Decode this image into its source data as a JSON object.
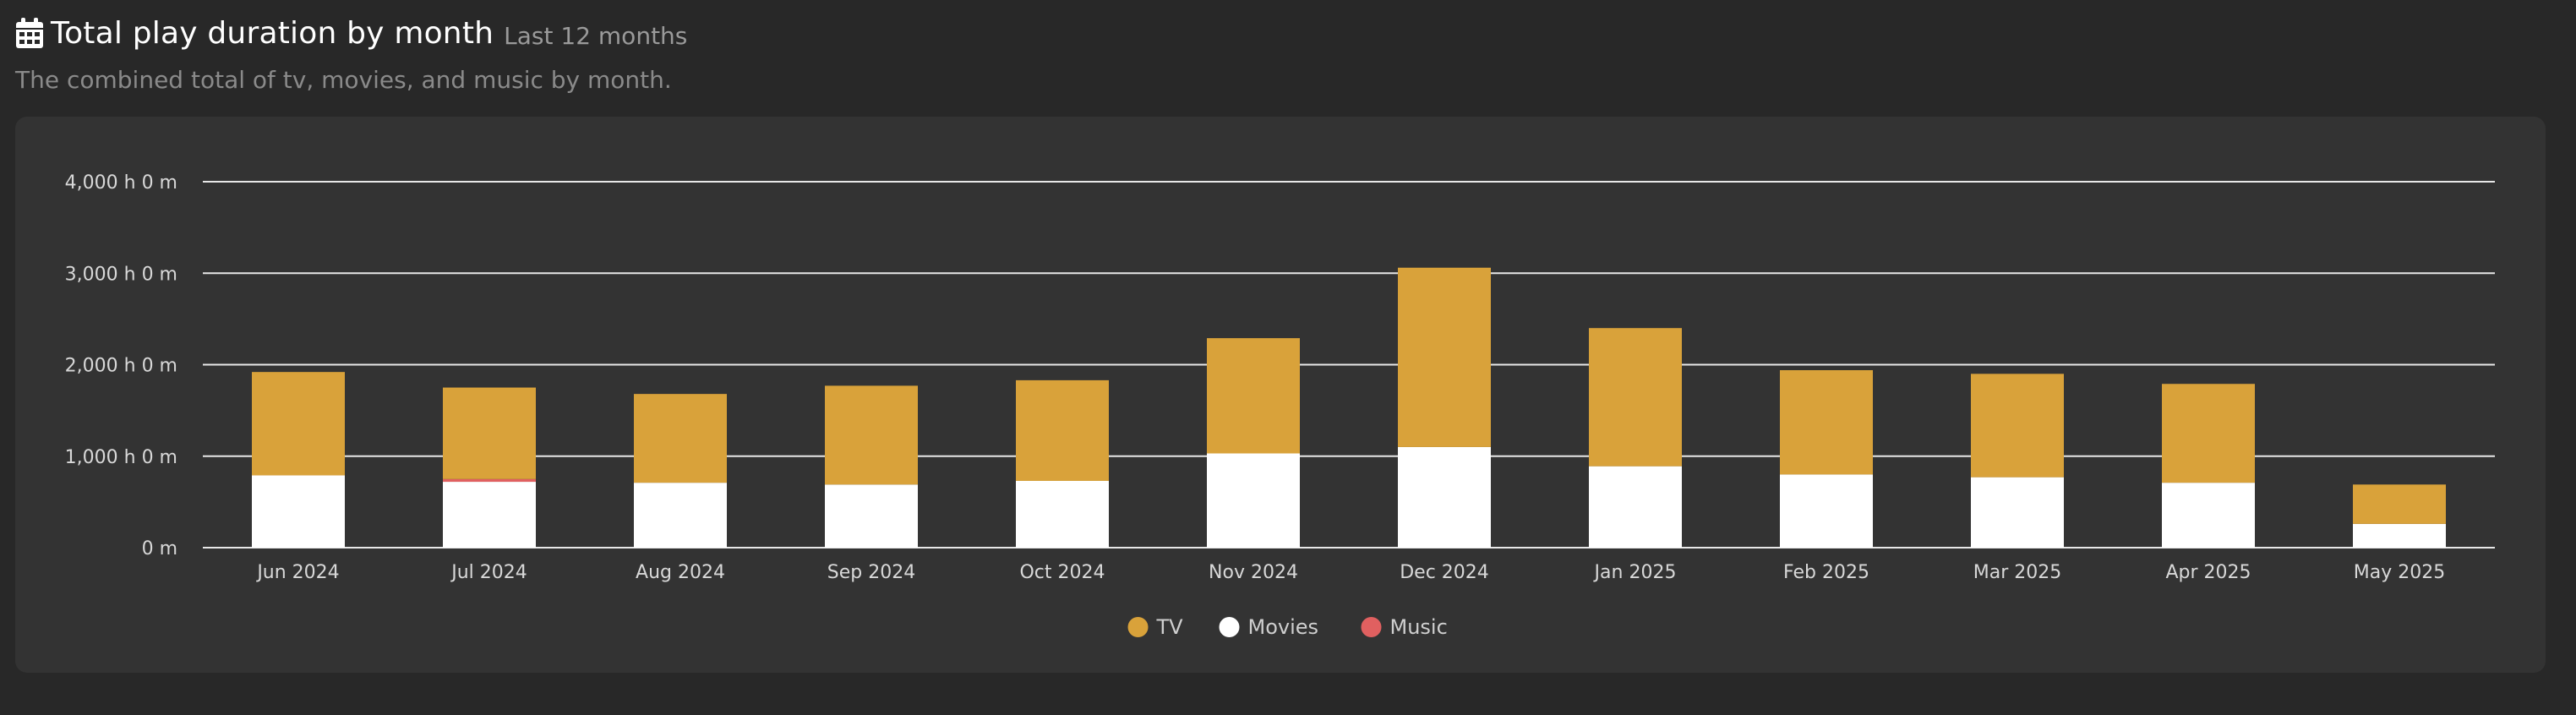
{
  "header": {
    "icon": "calendar-icon",
    "title": "Total play duration by month",
    "range": "Last 12 months",
    "description": "The combined total of tv, movies, and music by month."
  },
  "colors": {
    "tv": "#d9a23a",
    "movies": "#ffffff",
    "music": "#e06060",
    "grid": "#e8e8e8",
    "card": "#333333",
    "page": "#282828"
  },
  "chart_data": {
    "type": "bar",
    "stacked": true,
    "title": "Total play duration by month",
    "xlabel": "",
    "ylabel": "",
    "ylim": [
      0,
      4000
    ],
    "yticks": [
      0,
      1000,
      2000,
      3000,
      4000
    ],
    "ytick_labels": [
      "0 m",
      "1,000 h 0 m",
      "2,000 h 0 m",
      "3,000 h 0 m",
      "4,000 h 0 m"
    ],
    "legend_position": "bottom-center",
    "categories": [
      "Jun 2024",
      "Jul 2024",
      "Aug 2024",
      "Sep 2024",
      "Oct 2024",
      "Nov 2024",
      "Dec 2024",
      "Jan 2025",
      "Feb 2025",
      "Mar 2025",
      "Apr 2025",
      "May 2025"
    ],
    "series": [
      {
        "name": "Movies",
        "color": "#ffffff",
        "values": [
          790,
          720,
          710,
          690,
          730,
          1030,
          1100,
          890,
          800,
          770,
          710,
          260
        ]
      },
      {
        "name": "Music",
        "color": "#e06060",
        "values": [
          0,
          30,
          0,
          0,
          0,
          0,
          0,
          0,
          0,
          0,
          0,
          0
        ]
      },
      {
        "name": "TV",
        "color": "#d9a23a",
        "values": [
          1130,
          1000,
          970,
          1080,
          1100,
          1260,
          1960,
          1510,
          1140,
          1130,
          1080,
          430
        ]
      }
    ],
    "legend": [
      "TV",
      "Movies",
      "Music"
    ]
  }
}
